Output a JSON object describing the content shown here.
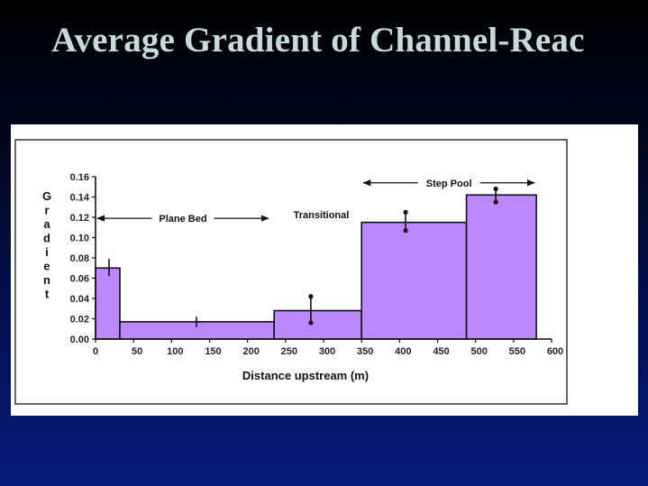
{
  "slide": {
    "title": "Average Gradient of Channel-Reac"
  },
  "chart_data": {
    "type": "bar",
    "subtype": "histogram-step",
    "xlabel": "Distance upstream (m)",
    "ylabel": "Gradient",
    "xlim": [
      0,
      600
    ],
    "ylim": [
      0,
      0.16
    ],
    "x_ticks": [
      0,
      50,
      100,
      150,
      200,
      250,
      300,
      350,
      400,
      450,
      500,
      550,
      600
    ],
    "y_ticks": [
      "0.00",
      "0.02",
      "0.04",
      "0.06",
      "0.08",
      "0.10",
      "0.12",
      "0.14",
      "0.16"
    ],
    "bar_color": "#bb88ff",
    "bars": [
      {
        "x_start": 0,
        "x_end": 32,
        "value": 0.07,
        "err_low": 0.062,
        "err_high": 0.079
      },
      {
        "x_start": 32,
        "x_end": 235,
        "value": 0.017,
        "err_low": 0.012,
        "err_high": 0.022
      },
      {
        "x_start": 235,
        "x_end": 350,
        "value": 0.028,
        "err_low": 0.016,
        "err_high": 0.042
      },
      {
        "x_start": 350,
        "x_end": 488,
        "value": 0.115,
        "err_low": 0.107,
        "err_high": 0.125
      },
      {
        "x_start": 488,
        "x_end": 580,
        "value": 0.142,
        "err_low": 0.135,
        "err_high": 0.148
      }
    ],
    "annotations": [
      {
        "text": "Plane Bed",
        "x_from": 0,
        "x_to": 230,
        "y": 0.119,
        "arrows": "both"
      },
      {
        "text": "Transitional",
        "x": 297,
        "y": 0.119
      },
      {
        "text": "Step Pool",
        "x_from": 350,
        "x_to": 580,
        "y": 0.154,
        "arrows": "both"
      }
    ]
  }
}
